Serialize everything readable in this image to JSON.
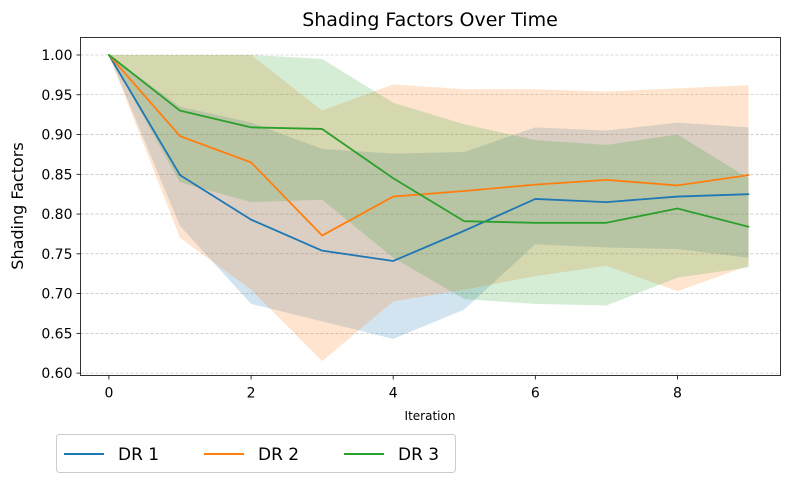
{
  "chart_data": {
    "type": "line",
    "title": "Shading Factors Over Time",
    "xlabel": "Iteration",
    "ylabel": "Shading Factors",
    "xlim": [
      -0.4,
      9.45
    ],
    "ylim": [
      0.597,
      1.022
    ],
    "xticks": [
      0,
      2,
      4,
      6,
      8
    ],
    "yticks": [
      "0.60",
      "0.65",
      "0.70",
      "0.75",
      "0.80",
      "0.85",
      "0.90",
      "0.95",
      "1.00"
    ],
    "grid": "horizontal dashed",
    "legend_position": "below, left",
    "x": [
      0,
      1,
      2,
      3,
      4,
      5,
      6,
      7,
      8,
      9
    ],
    "series": [
      {
        "name": "DR 1",
        "color": "#1f77b4",
        "values": [
          1.0,
          0.849,
          0.793,
          0.754,
          0.741,
          0.779,
          0.819,
          0.815,
          0.822,
          0.825
        ],
        "lower": [
          1.0,
          0.785,
          0.687,
          0.665,
          0.643,
          0.68,
          0.762,
          0.758,
          0.756,
          0.745
        ],
        "upper": [
          1.0,
          0.935,
          0.915,
          0.882,
          0.876,
          0.878,
          0.909,
          0.905,
          0.915,
          0.909
        ]
      },
      {
        "name": "DR 2",
        "color": "#ff7f0e",
        "values": [
          1.0,
          0.898,
          0.865,
          0.773,
          0.822,
          0.829,
          0.837,
          0.843,
          0.836,
          0.849
        ],
        "lower": [
          1.0,
          0.77,
          0.705,
          0.615,
          0.69,
          0.705,
          0.722,
          0.735,
          0.703,
          0.735
        ],
        "upper": [
          1.0,
          1.0,
          1.0,
          0.93,
          0.963,
          0.957,
          0.957,
          0.954,
          0.958,
          0.962
        ]
      },
      {
        "name": "DR 3",
        "color": "#2ca02c",
        "values": [
          1.0,
          0.93,
          0.909,
          0.907,
          0.845,
          0.791,
          0.789,
          0.789,
          0.807,
          0.784
        ],
        "lower": [
          1.0,
          0.84,
          0.815,
          0.818,
          0.745,
          0.693,
          0.687,
          0.685,
          0.72,
          0.733
        ],
        "upper": [
          1.0,
          1.0,
          1.0,
          0.995,
          0.94,
          0.913,
          0.893,
          0.887,
          0.9,
          0.845
        ]
      }
    ]
  }
}
